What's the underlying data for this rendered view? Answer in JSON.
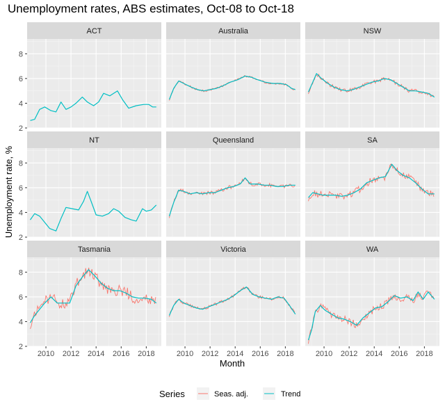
{
  "chart_data": {
    "type": "line",
    "title": "Unemployment rates, ABS estimates, Oct-08 to Oct-18",
    "xlabel": "Month",
    "ylabel": "Unemployment rate, %",
    "xlim": [
      2008.5,
      2019.2
    ],
    "ylim": [
      2,
      9.2
    ],
    "x_ticks": [
      2010,
      2012,
      2014,
      2016,
      2018
    ],
    "y_ticks": [
      2,
      4,
      6,
      8
    ],
    "legend": {
      "title": "Series",
      "placement": "bottom",
      "entries": [
        {
          "name": "Seas. adj.",
          "color": "#F8766D"
        },
        {
          "name": "Trend",
          "color": "#00BFC4"
        }
      ]
    },
    "colors": {
      "seas_adj": "#F8766D",
      "trend": "#00BFC4",
      "panel_bg": "#EBEBEB",
      "strip_bg": "#D9D9D9"
    },
    "panels": [
      {
        "name": "ACT",
        "has_seas": false,
        "noise": 0,
        "trend": [
          [
            2008.75,
            2.6
          ],
          [
            2009.1,
            2.7
          ],
          [
            2009.5,
            3.5
          ],
          [
            2009.9,
            3.7
          ],
          [
            2010.4,
            3.4
          ],
          [
            2010.8,
            3.3
          ],
          [
            2011.2,
            4.1
          ],
          [
            2011.6,
            3.5
          ],
          [
            2012.0,
            3.7
          ],
          [
            2012.4,
            4.0
          ],
          [
            2012.9,
            4.5
          ],
          [
            2013.3,
            4.1
          ],
          [
            2013.8,
            3.8
          ],
          [
            2014.2,
            4.1
          ],
          [
            2014.6,
            4.8
          ],
          [
            2015.1,
            4.6
          ],
          [
            2015.7,
            5.0
          ],
          [
            2016.1,
            4.3
          ],
          [
            2016.6,
            3.6
          ],
          [
            2017.2,
            3.8
          ],
          [
            2017.8,
            3.9
          ],
          [
            2018.2,
            3.9
          ],
          [
            2018.5,
            3.7
          ],
          [
            2018.8,
            3.7
          ]
        ]
      },
      {
        "name": "Australia",
        "has_seas": true,
        "noise": 0.08,
        "trend": [
          [
            2008.75,
            4.3
          ],
          [
            2009.1,
            5.2
          ],
          [
            2009.5,
            5.8
          ],
          [
            2009.9,
            5.6
          ],
          [
            2010.5,
            5.3
          ],
          [
            2011.0,
            5.1
          ],
          [
            2011.5,
            5.0
          ],
          [
            2012.0,
            5.1
          ],
          [
            2012.5,
            5.2
          ],
          [
            2013.0,
            5.4
          ],
          [
            2013.6,
            5.7
          ],
          [
            2014.2,
            5.9
          ],
          [
            2014.8,
            6.2
          ],
          [
            2015.3,
            6.1
          ],
          [
            2015.8,
            5.9
          ],
          [
            2016.4,
            5.7
          ],
          [
            2017.0,
            5.6
          ],
          [
            2017.6,
            5.6
          ],
          [
            2018.1,
            5.5
          ],
          [
            2018.5,
            5.2
          ],
          [
            2018.8,
            5.1
          ]
        ]
      },
      {
        "name": "NSW",
        "has_seas": true,
        "noise": 0.15,
        "trend": [
          [
            2008.75,
            4.9
          ],
          [
            2009.1,
            5.7
          ],
          [
            2009.4,
            6.4
          ],
          [
            2009.8,
            6.0
          ],
          [
            2010.3,
            5.6
          ],
          [
            2010.8,
            5.3
          ],
          [
            2011.3,
            5.1
          ],
          [
            2011.8,
            5.0
          ],
          [
            2012.3,
            5.1
          ],
          [
            2012.8,
            5.3
          ],
          [
            2013.3,
            5.5
          ],
          [
            2013.8,
            5.7
          ],
          [
            2014.3,
            5.8
          ],
          [
            2014.8,
            6.0
          ],
          [
            2015.3,
            5.9
          ],
          [
            2015.8,
            5.6
          ],
          [
            2016.3,
            5.3
          ],
          [
            2016.8,
            5.0
          ],
          [
            2017.3,
            5.0
          ],
          [
            2017.8,
            4.9
          ],
          [
            2018.3,
            4.8
          ],
          [
            2018.8,
            4.5
          ]
        ]
      },
      {
        "name": "NT",
        "has_seas": false,
        "noise": 0,
        "trend": [
          [
            2008.75,
            3.4
          ],
          [
            2009.1,
            3.9
          ],
          [
            2009.5,
            3.7
          ],
          [
            2009.9,
            3.2
          ],
          [
            2010.3,
            2.7
          ],
          [
            2010.8,
            2.5
          ],
          [
            2011.2,
            3.5
          ],
          [
            2011.6,
            4.4
          ],
          [
            2012.1,
            4.3
          ],
          [
            2012.6,
            4.2
          ],
          [
            2013.0,
            4.9
          ],
          [
            2013.3,
            5.7
          ],
          [
            2013.6,
            4.9
          ],
          [
            2014.0,
            3.8
          ],
          [
            2014.5,
            3.7
          ],
          [
            2015.0,
            3.9
          ],
          [
            2015.4,
            4.3
          ],
          [
            2015.8,
            4.1
          ],
          [
            2016.3,
            3.6
          ],
          [
            2016.8,
            3.4
          ],
          [
            2017.2,
            3.3
          ],
          [
            2017.7,
            4.3
          ],
          [
            2018.0,
            4.1
          ],
          [
            2018.4,
            4.2
          ],
          [
            2018.8,
            4.6
          ]
        ]
      },
      {
        "name": "Queensland",
        "has_seas": true,
        "noise": 0.15,
        "trend": [
          [
            2008.75,
            3.7
          ],
          [
            2009.1,
            4.8
          ],
          [
            2009.5,
            5.8
          ],
          [
            2009.9,
            5.7
          ],
          [
            2010.4,
            5.5
          ],
          [
            2010.9,
            5.6
          ],
          [
            2011.4,
            5.5
          ],
          [
            2011.9,
            5.6
          ],
          [
            2012.4,
            5.6
          ],
          [
            2012.9,
            5.8
          ],
          [
            2013.4,
            6.0
          ],
          [
            2013.9,
            6.1
          ],
          [
            2014.4,
            6.3
          ],
          [
            2014.8,
            6.8
          ],
          [
            2015.2,
            6.3
          ],
          [
            2015.8,
            6.3
          ],
          [
            2016.3,
            6.2
          ],
          [
            2016.8,
            6.2
          ],
          [
            2017.3,
            6.1
          ],
          [
            2017.8,
            6.1
          ],
          [
            2018.3,
            6.2
          ],
          [
            2018.8,
            6.2
          ]
        ]
      },
      {
        "name": "SA",
        "has_seas": true,
        "noise": 0.3,
        "trend": [
          [
            2008.75,
            5.2
          ],
          [
            2009.1,
            5.6
          ],
          [
            2009.5,
            5.5
          ],
          [
            2009.9,
            5.4
          ],
          [
            2010.4,
            5.4
          ],
          [
            2010.9,
            5.4
          ],
          [
            2011.4,
            5.3
          ],
          [
            2011.9,
            5.4
          ],
          [
            2012.4,
            5.6
          ],
          [
            2012.9,
            5.9
          ],
          [
            2013.4,
            6.4
          ],
          [
            2013.9,
            6.6
          ],
          [
            2014.4,
            6.8
          ],
          [
            2014.9,
            6.9
          ],
          [
            2015.4,
            7.9
          ],
          [
            2015.8,
            7.4
          ],
          [
            2016.3,
            7.0
          ],
          [
            2016.8,
            6.8
          ],
          [
            2017.3,
            6.4
          ],
          [
            2017.8,
            5.9
          ],
          [
            2018.3,
            5.5
          ],
          [
            2018.8,
            5.5
          ]
        ]
      },
      {
        "name": "Tasmania",
        "has_seas": true,
        "noise": 0.5,
        "trend": [
          [
            2008.75,
            3.9
          ],
          [
            2009.1,
            4.5
          ],
          [
            2009.5,
            5.0
          ],
          [
            2009.9,
            5.5
          ],
          [
            2010.4,
            6.0
          ],
          [
            2010.9,
            5.5
          ],
          [
            2011.4,
            5.5
          ],
          [
            2011.9,
            5.5
          ],
          [
            2012.4,
            6.9
          ],
          [
            2012.9,
            7.6
          ],
          [
            2013.4,
            8.2
          ],
          [
            2013.9,
            7.7
          ],
          [
            2014.4,
            7.1
          ],
          [
            2014.9,
            6.7
          ],
          [
            2015.4,
            6.5
          ],
          [
            2015.9,
            6.5
          ],
          [
            2016.4,
            6.3
          ],
          [
            2016.9,
            6.0
          ],
          [
            2017.4,
            5.9
          ],
          [
            2017.9,
            5.9
          ],
          [
            2018.4,
            5.8
          ],
          [
            2018.8,
            5.5
          ]
        ]
      },
      {
        "name": "Victoria",
        "has_seas": true,
        "noise": 0.12,
        "trend": [
          [
            2008.75,
            4.5
          ],
          [
            2009.1,
            5.3
          ],
          [
            2009.5,
            5.8
          ],
          [
            2009.9,
            5.5
          ],
          [
            2010.4,
            5.3
          ],
          [
            2010.9,
            5.1
          ],
          [
            2011.4,
            5.0
          ],
          [
            2011.9,
            5.2
          ],
          [
            2012.4,
            5.4
          ],
          [
            2012.9,
            5.6
          ],
          [
            2013.4,
            5.8
          ],
          [
            2013.9,
            6.1
          ],
          [
            2014.4,
            6.5
          ],
          [
            2014.9,
            6.8
          ],
          [
            2015.4,
            6.2
          ],
          [
            2015.9,
            6.0
          ],
          [
            2016.4,
            5.9
          ],
          [
            2016.9,
            5.8
          ],
          [
            2017.4,
            6.0
          ],
          [
            2017.9,
            5.9
          ],
          [
            2018.4,
            5.2
          ],
          [
            2018.8,
            4.6
          ]
        ]
      },
      {
        "name": "WA",
        "has_seas": true,
        "noise": 0.3,
        "trend": [
          [
            2008.75,
            2.5
          ],
          [
            2009.0,
            3.3
          ],
          [
            2009.3,
            4.8
          ],
          [
            2009.7,
            5.3
          ],
          [
            2010.1,
            4.9
          ],
          [
            2010.6,
            4.6
          ],
          [
            2011.1,
            4.3
          ],
          [
            2011.6,
            4.2
          ],
          [
            2012.1,
            4.0
          ],
          [
            2012.6,
            3.7
          ],
          [
            2013.1,
            4.3
          ],
          [
            2013.6,
            4.7
          ],
          [
            2014.1,
            5.1
          ],
          [
            2014.6,
            5.2
          ],
          [
            2015.1,
            5.6
          ],
          [
            2015.6,
            6.1
          ],
          [
            2016.1,
            5.9
          ],
          [
            2016.6,
            6.0
          ],
          [
            2017.1,
            5.7
          ],
          [
            2017.5,
            6.4
          ],
          [
            2017.9,
            5.8
          ],
          [
            2018.3,
            6.4
          ],
          [
            2018.8,
            5.8
          ]
        ]
      }
    ]
  }
}
